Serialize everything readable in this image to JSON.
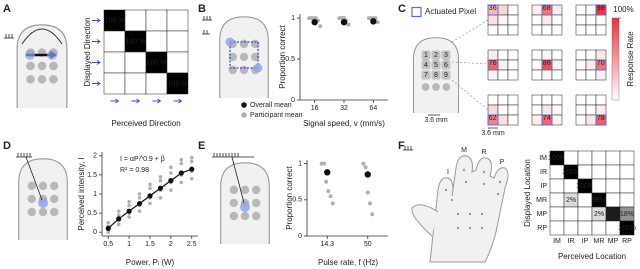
{
  "panel_labels": [
    "A",
    "B",
    "C",
    "D",
    "E",
    "F"
  ],
  "chart_data": [
    {
      "type": "heatmap",
      "y_label": "Displayed Direction",
      "x_label": "Perceived Direction",
      "color": "#000000",
      "vlim": [
        0,
        100
      ],
      "values": [
        [
          100,
          0,
          0,
          0
        ],
        [
          0,
          100,
          0,
          0
        ],
        [
          0,
          0,
          100,
          0
        ],
        [
          0,
          0,
          0,
          100
        ]
      ],
      "value_labels": [
        [
          "100 %",
          null,
          null,
          null
        ],
        [
          null,
          "100 %",
          null,
          null
        ],
        [
          null,
          null,
          "100 %",
          null
        ],
        [
          null,
          null,
          null,
          "100 %"
        ]
      ]
    },
    {
      "type": "dotplot",
      "y_label": "Proportion correct",
      "x_label": "Signal speed, v (mm/s)",
      "categories": [
        "16",
        "32",
        "64"
      ],
      "ylim": [
        0,
        1.05
      ],
      "yticks": [
        0,
        0.5,
        1
      ],
      "series": [
        {
          "name": "Overall mean",
          "color": "#111111",
          "values": [
            0.95,
            0.95,
            0.96
          ]
        },
        {
          "name": "Participant mean",
          "color": "#b0b0b0",
          "values": [
            [
              1,
              1,
              1,
              1,
              0.97,
              0.9
            ],
            [
              1,
              1,
              1,
              0.97,
              0.92
            ],
            [
              1,
              1,
              1,
              1,
              0.95
            ]
          ]
        }
      ]
    },
    {
      "type": "heatmap_grid",
      "legend": "Actuated Pixel",
      "legend_color": "#5b6fd6",
      "color": "#e8333c",
      "vlim": [
        0,
        100
      ],
      "cticks": [
        {
          "value": 100,
          "label": "100%"
        }
      ],
      "colorbar_label": "Response Rate",
      "pixel_labels": [
        "1",
        "2",
        "3",
        "4",
        "5",
        "6",
        "7",
        "8",
        "9"
      ],
      "scale_labels": [
        "3.6 mm",
        "3.6 mm"
      ],
      "maps": [
        [
          36,
          20,
          0,
          15,
          5,
          0,
          0,
          0,
          0
        ],
        [
          8,
          68,
          10,
          0,
          10,
          0,
          0,
          0,
          0
        ],
        [
          0,
          0,
          98,
          0,
          0,
          2,
          0,
          0,
          0
        ],
        [
          10,
          0,
          0,
          76,
          8,
          0,
          6,
          0,
          0
        ],
        [
          0,
          4,
          0,
          0,
          86,
          6,
          0,
          4,
          0
        ],
        [
          0,
          0,
          12,
          0,
          10,
          70,
          0,
          0,
          8
        ],
        [
          0,
          0,
          0,
          18,
          0,
          0,
          62,
          15,
          0
        ],
        [
          0,
          0,
          0,
          0,
          12,
          0,
          8,
          74,
          6
        ],
        [
          0,
          0,
          0,
          0,
          0,
          10,
          0,
          12,
          78
        ]
      ]
    },
    {
      "type": "scatter",
      "y_label": "Perceived intensity, I",
      "x_label": "Power, Pₗ (W)",
      "annotations": [
        "I = αPₗ^0.9 + β",
        "R² = 0.98"
      ],
      "xlim": [
        0.35,
        2.65
      ],
      "xticks": [
        0.5,
        1,
        1.5,
        2,
        2.5
      ],
      "ylim": [
        -0.1,
        2.1
      ],
      "yticks": [
        0,
        0.5,
        1,
        1.5,
        2
      ],
      "series": [
        {
          "color": "#111111",
          "line": true,
          "x": [
            0.5,
            0.75,
            1,
            1.25,
            1.5,
            1.75,
            2,
            2.25,
            2.5
          ],
          "values": [
            0.1,
            0.35,
            0.55,
            0.75,
            0.95,
            1.15,
            1.35,
            1.55,
            1.65
          ]
        },
        {
          "color": "#b0b0b0",
          "line": false,
          "x": [
            0.5,
            0.5,
            0.5,
            0.5,
            0.75,
            0.75,
            0.75,
            0.75,
            1,
            1,
            1,
            1,
            1.25,
            1.25,
            1.25,
            1.25,
            1.5,
            1.5,
            1.5,
            1.5,
            1.75,
            1.75,
            1.75,
            1.75,
            2,
            2,
            2,
            2,
            2.25,
            2.25,
            2.25,
            2.25,
            2.5,
            2.5,
            2.5,
            2.5
          ],
          "values": [
            0,
            0.15,
            0.25,
            0.05,
            0.2,
            0.45,
            0.3,
            0.55,
            0.4,
            0.7,
            0.5,
            0.8,
            0.55,
            0.9,
            0.7,
            1,
            0.75,
            1.15,
            0.9,
            1.25,
            0.9,
            1.35,
            1.1,
            1.45,
            1.1,
            1.55,
            1.3,
            1.7,
            1.3,
            1.8,
            1.5,
            1.9,
            1.4,
            1.95,
            1.6,
            1.85
          ]
        }
      ]
    },
    {
      "type": "dotplot",
      "y_label": "Proportion correct",
      "x_label": "Pulse rate, f (Hz)",
      "categories": [
        "14.3",
        "50"
      ],
      "ylim": [
        0,
        1.05
      ],
      "yticks": [
        0,
        0.5,
        1
      ],
      "series": [
        {
          "color": "#111111",
          "values": [
            0.88,
            0.85
          ]
        },
        {
          "color": "#b0b0b0",
          "values": [
            [
              1,
              1,
              0.75,
              0.62,
              0.55,
              0.45
            ],
            [
              1,
              0.95,
              0.6,
              0.45,
              0.3
            ]
          ]
        }
      ]
    },
    {
      "type": "heatmap",
      "y_label": "Displayed Location",
      "x_label": "Perceived Location",
      "color": "#000000",
      "vlim": [
        0,
        100
      ],
      "categories": [
        "IM",
        "IR",
        "IP",
        "MR",
        "MP",
        "RP"
      ],
      "hand_labels": [
        "I",
        "M",
        "R",
        "P"
      ],
      "values": [
        [
          100,
          0,
          0,
          0,
          0,
          0
        ],
        [
          0,
          100,
          0,
          0,
          0,
          0
        ],
        [
          0,
          0,
          100,
          0,
          0,
          0
        ],
        [
          0,
          2,
          0,
          98,
          0,
          0
        ],
        [
          0,
          0,
          0,
          2,
          80,
          18
        ],
        [
          0,
          0,
          0,
          0,
          0,
          100
        ]
      ],
      "value_labels": [
        [
          "100%",
          null,
          null,
          null,
          null,
          null
        ],
        [
          null,
          "100%",
          null,
          null,
          null,
          null
        ],
        [
          null,
          null,
          "100%",
          null,
          null,
          null
        ],
        [
          null,
          "2%",
          null,
          "98%",
          null,
          null
        ],
        [
          null,
          null,
          null,
          "2%",
          "80%",
          "18%"
        ],
        [
          null,
          null,
          null,
          null,
          null,
          "100%"
        ]
      ]
    }
  ]
}
